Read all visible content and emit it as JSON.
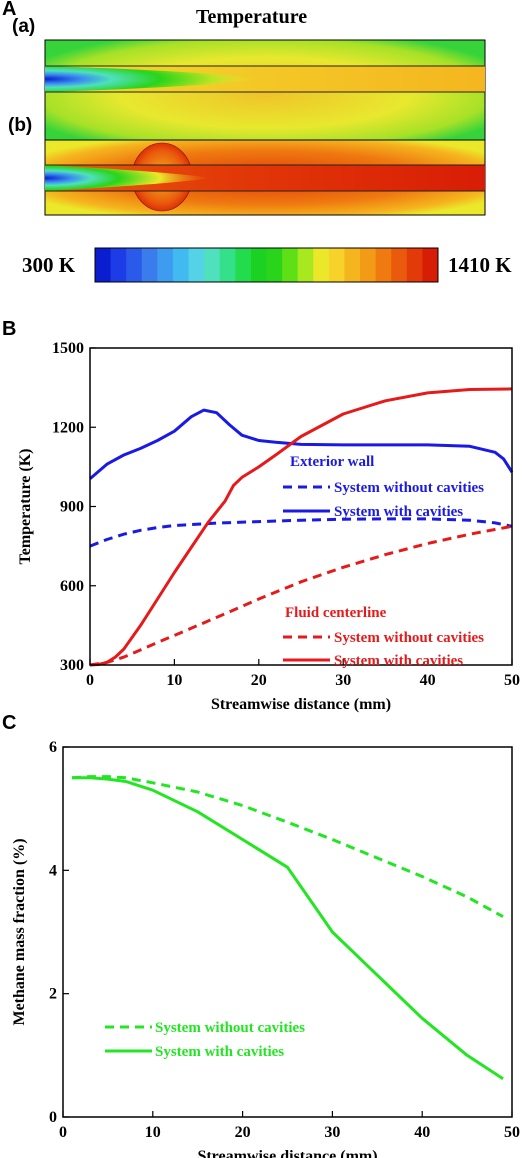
{
  "panel_a": {
    "label": "A",
    "title": "Temperature",
    "sub_a": "(a)",
    "sub_b": "(b)",
    "colorbar": {
      "min_label": "300 K",
      "max_label": "1410 K",
      "colors": [
        "#0a1ecf",
        "#1d3be6",
        "#2a5ae9",
        "#3a7ceb",
        "#3d9cef",
        "#41baf1",
        "#55d3e6",
        "#4fe0bd",
        "#34e08a",
        "#22dc4e",
        "#1bd223",
        "#2ad41a",
        "#5ee017",
        "#a8e81f",
        "#ebe82a",
        "#f7d22a",
        "#f5b51e",
        "#f39a16",
        "#ef7a10",
        "#ea5a0c",
        "#e23a08",
        "#d81d06"
      ]
    }
  },
  "panel_b": {
    "label": "B"
  },
  "panel_c": {
    "label": "C"
  },
  "chart_data": [
    {
      "type": "line",
      "panel": "B",
      "xlabel": "Streamwise distance (mm)",
      "ylabel": "Temperature (K)",
      "xlim": [
        0,
        50
      ],
      "ylim": [
        300,
        1500
      ],
      "xticks": [
        0,
        10,
        20,
        30,
        40,
        50
      ],
      "yticks": [
        300,
        600,
        900,
        1200,
        1500
      ],
      "legend_groups": [
        {
          "title": "Exterior wall",
          "color": "#1a1ae6",
          "entries": [
            {
              "label": "System without cavities",
              "dash": true
            },
            {
              "label": "System with cavities",
              "dash": false
            }
          ]
        },
        {
          "title": "Fluid centerline",
          "color": "#e61a1a",
          "entries": [
            {
              "label": "System without cavities",
              "dash": true
            },
            {
              "label": "System with cavities",
              "dash": false
            }
          ]
        }
      ],
      "series": [
        {
          "name": "System without cavities",
          "group": "Exterior wall",
          "color": "#1a1ae6",
          "dash": true,
          "x": [
            0,
            2,
            4,
            6,
            8,
            10,
            15,
            20,
            25,
            30,
            35,
            40,
            45,
            48,
            50
          ],
          "y": [
            750,
            775,
            795,
            810,
            820,
            828,
            837,
            843,
            848,
            852,
            853,
            853,
            848,
            838,
            825
          ]
        },
        {
          "name": "System with cavities",
          "group": "Exterior wall",
          "color": "#1a1ae6",
          "dash": false,
          "x": [
            0,
            2,
            4,
            6,
            8,
            10,
            12,
            13.5,
            15,
            16.5,
            18,
            20,
            22,
            25,
            30,
            35,
            40,
            45,
            48,
            49,
            50
          ],
          "y": [
            1005,
            1060,
            1095,
            1120,
            1150,
            1185,
            1240,
            1265,
            1255,
            1210,
            1170,
            1150,
            1143,
            1135,
            1133,
            1133,
            1133,
            1128,
            1105,
            1080,
            1030
          ]
        },
        {
          "name": "System without cavities",
          "group": "Fluid centerline",
          "color": "#e61a1a",
          "dash": true,
          "x": [
            0,
            2,
            4,
            6,
            8,
            10,
            15,
            20,
            25,
            30,
            35,
            40,
            45,
            50
          ],
          "y": [
            300,
            310,
            330,
            357,
            385,
            412,
            480,
            550,
            615,
            670,
            718,
            760,
            795,
            825
          ]
        },
        {
          "name": "System with cavities",
          "group": "Fluid centerline",
          "color": "#e61a1a",
          "dash": false,
          "x": [
            0,
            1,
            2,
            3,
            4,
            6,
            8,
            10,
            12,
            14,
            16,
            17,
            18,
            20,
            22,
            25,
            30,
            35,
            40,
            45,
            50
          ],
          "y": [
            300,
            302,
            310,
            330,
            360,
            450,
            550,
            650,
            745,
            840,
            920,
            980,
            1010,
            1050,
            1095,
            1165,
            1250,
            1300,
            1330,
            1343,
            1345
          ]
        }
      ]
    },
    {
      "type": "line",
      "panel": "C",
      "xlabel": "Streamwise distance (mm)",
      "ylabel": "Methane mass fraction (%)",
      "xlim": [
        0,
        50
      ],
      "ylim": [
        0,
        6
      ],
      "xticks": [
        0,
        10,
        20,
        30,
        40,
        50
      ],
      "yticks": [
        0,
        2,
        4,
        6
      ],
      "legend": [
        {
          "label": "System without cavities",
          "dash": true,
          "color": "#22e622"
        },
        {
          "label": "System with cavities",
          "dash": false,
          "color": "#22e622"
        }
      ],
      "series": [
        {
          "name": "System without cavities",
          "color": "#22e622",
          "dash": true,
          "x": [
            1,
            3,
            5,
            7,
            10,
            15,
            20,
            25,
            30,
            35,
            40,
            45,
            49
          ],
          "y": [
            5.5,
            5.52,
            5.52,
            5.5,
            5.42,
            5.27,
            5.05,
            4.78,
            4.5,
            4.2,
            3.9,
            3.57,
            3.25
          ]
        },
        {
          "name": "System with cavities",
          "color": "#22e622",
          "dash": false,
          "x": [
            1,
            3,
            5,
            7,
            10,
            15,
            20,
            25,
            30,
            35,
            40,
            45,
            49
          ],
          "y": [
            5.5,
            5.5,
            5.48,
            5.44,
            5.3,
            4.95,
            4.5,
            4.05,
            3.0,
            2.3,
            1.6,
            1.0,
            0.62
          ]
        }
      ]
    }
  ]
}
